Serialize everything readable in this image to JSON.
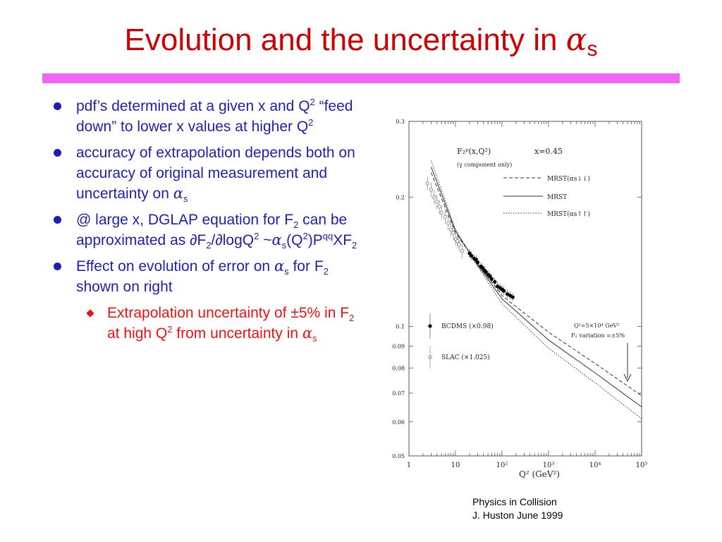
{
  "title": {
    "main": "Evolution and the uncertainty in ",
    "greek": "α",
    "sub": "s"
  },
  "colors": {
    "title": "#cc0000",
    "rule": "#f065f2",
    "bullet_text": "#1e1eb0",
    "sub_bullet_text": "#ee1111"
  },
  "bullets": {
    "b1": {
      "t1": "pdf’s determined at a given x and Q",
      "sup1": "2",
      "t2": " “feed down” to lower x values at higher Q",
      "sup2": "2"
    },
    "b2": {
      "t1": "accuracy of extrapolation depends both on accuracy of original measurement and uncertainty on ",
      "greek": "α",
      "sub": "s"
    },
    "b3": {
      "t1": "@ large x, DGLAP equation for F",
      "sub1": "2",
      "t2": " can be approximated  as ",
      "t3": "∂F",
      "sub2": "2",
      "t4": "/∂logQ",
      "sup1": "2",
      "t5": " ~",
      "greek": "α",
      "sub3": "s",
      "t6": "(Q",
      "sup2": "2",
      "t7": ")P",
      "sup3": "qq",
      "t8": "XF",
      "sub4": "2"
    },
    "b4": {
      "t1": "Effect on evolution of error on ",
      "greek": "α",
      "sub1": "s",
      "t2": " for F",
      "sub2": "2",
      "t3": " shown on right"
    },
    "sub": {
      "t1": "Extrapolation uncertainty of ±5% in F",
      "sub1": "2",
      "t2": " at high Q",
      "sup1": "2",
      "t3": " from uncertainty in ",
      "greek": "α",
      "sub2": "s"
    }
  },
  "chart_data": {
    "type": "line",
    "x_scale": "log",
    "y_scale": "log",
    "xlim": [
      1,
      100000
    ],
    "ylim": [
      0.05,
      0.3
    ],
    "xlabel": "Q² (GeV²)",
    "x_ticks": [
      "1",
      "10",
      "10²",
      "10³",
      "10⁴",
      "10⁵"
    ],
    "y_ticks": [
      "0.05",
      "0.06",
      "0.07",
      "0.08",
      "0.09",
      "0.1",
      "0.2",
      "0.3"
    ],
    "inset": {
      "label1": "F₂ᵖ(x,Q²)",
      "label2": "(γ component only)",
      "xval": "x=0.45",
      "note1": "Q²=5×10⁴ GeV²",
      "note2": "F₂ variation =±5%"
    },
    "series": [
      {
        "name": "MRST(αs↓↓)",
        "style": "dashed",
        "x": [
          3,
          10,
          30,
          100,
          1000,
          10000,
          100000
        ],
        "y": [
          0.228,
          0.165,
          0.14,
          0.118,
          0.097,
          0.082,
          0.069
        ]
      },
      {
        "name": "MRST",
        "style": "solid",
        "x": [
          3,
          10,
          30,
          100,
          1000,
          10000,
          100000
        ],
        "y": [
          0.235,
          0.167,
          0.139,
          0.116,
          0.093,
          0.078,
          0.065
        ]
      },
      {
        "name": "MRST(αs↑↑)",
        "style": "dotted",
        "x": [
          3,
          10,
          30,
          100,
          1000,
          10000,
          100000
        ],
        "y": [
          0.243,
          0.168,
          0.138,
          0.113,
          0.089,
          0.074,
          0.061
        ]
      }
    ],
    "points": [
      {
        "name": "BCDMS (×0.98)",
        "marker": "filled-circle",
        "x": [
          20,
          22,
          25,
          28,
          30,
          35,
          38,
          42,
          45,
          50,
          55,
          60,
          70,
          80,
          90,
          100,
          110,
          130,
          150,
          170
        ],
        "y": [
          0.148,
          0.146,
          0.144,
          0.143,
          0.141,
          0.138,
          0.137,
          0.135,
          0.134,
          0.132,
          0.131,
          0.129,
          0.127,
          0.124,
          0.123,
          0.122,
          0.121,
          0.119,
          0.118,
          0.117
        ]
      },
      {
        "name": "SLAC (×1.025)",
        "marker": "open-circle",
        "x": [
          2.5,
          3,
          3.5,
          4,
          4.5,
          5,
          6,
          7,
          8,
          9,
          10,
          11,
          12,
          14
        ],
        "y": [
          0.215,
          0.208,
          0.2,
          0.195,
          0.19,
          0.184,
          0.18,
          0.174,
          0.168,
          0.165,
          0.16,
          0.158,
          0.155,
          0.15
        ]
      }
    ]
  },
  "footer": {
    "line1": "Physics in Collision",
    "line2": "J. Huston    June 1999"
  }
}
